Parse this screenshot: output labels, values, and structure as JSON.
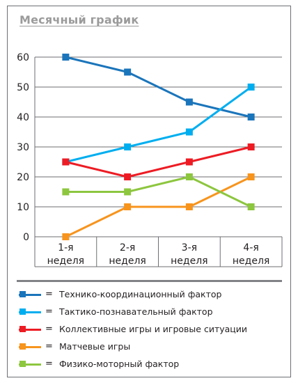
{
  "title": "Месячный график",
  "chart_data": {
    "type": "line",
    "title": "Месячный график",
    "categories": [
      [
        "1-я",
        "неделя"
      ],
      [
        "2-я",
        "неделя"
      ],
      [
        "3-я",
        "неделя"
      ],
      [
        "4-я",
        "неделя"
      ]
    ],
    "ylim": [
      0,
      60
    ],
    "yticks": [
      0,
      10,
      20,
      30,
      40,
      50,
      60
    ],
    "grid": true,
    "legend_position": "bottom",
    "series": [
      {
        "name": "Технико-координационный фактор",
        "color": "#1b75bb",
        "values": [
          60,
          55,
          45,
          40
        ]
      },
      {
        "name": "Тактико-познавательный фактор",
        "color": "#00aeef",
        "values": [
          25,
          30,
          35,
          50
        ]
      },
      {
        "name": "Коллективные игры и игровые ситуации",
        "color": "#ed1c24",
        "values": [
          25,
          20,
          25,
          30
        ]
      },
      {
        "name": "Матчевые игры",
        "color": "#f7941d",
        "values": [
          0,
          10,
          10,
          20
        ]
      },
      {
        "name": "Физико-моторный фактор",
        "color": "#8dc63f",
        "values": [
          15,
          15,
          20,
          10
        ]
      }
    ]
  },
  "legend": {
    "equals": "=",
    "items": [
      {
        "label": "Технико-координационный фактор",
        "color": "#1b75bb"
      },
      {
        "label": "Тактико-познавательный фактор",
        "color": "#00aeef"
      },
      {
        "label": "Коллективные игры и игровые ситуации",
        "color": "#ed1c24"
      },
      {
        "label": "Матчевые игры",
        "color": "#f7941d"
      },
      {
        "label": "Физико-моторный фактор",
        "color": "#8dc63f"
      }
    ]
  }
}
